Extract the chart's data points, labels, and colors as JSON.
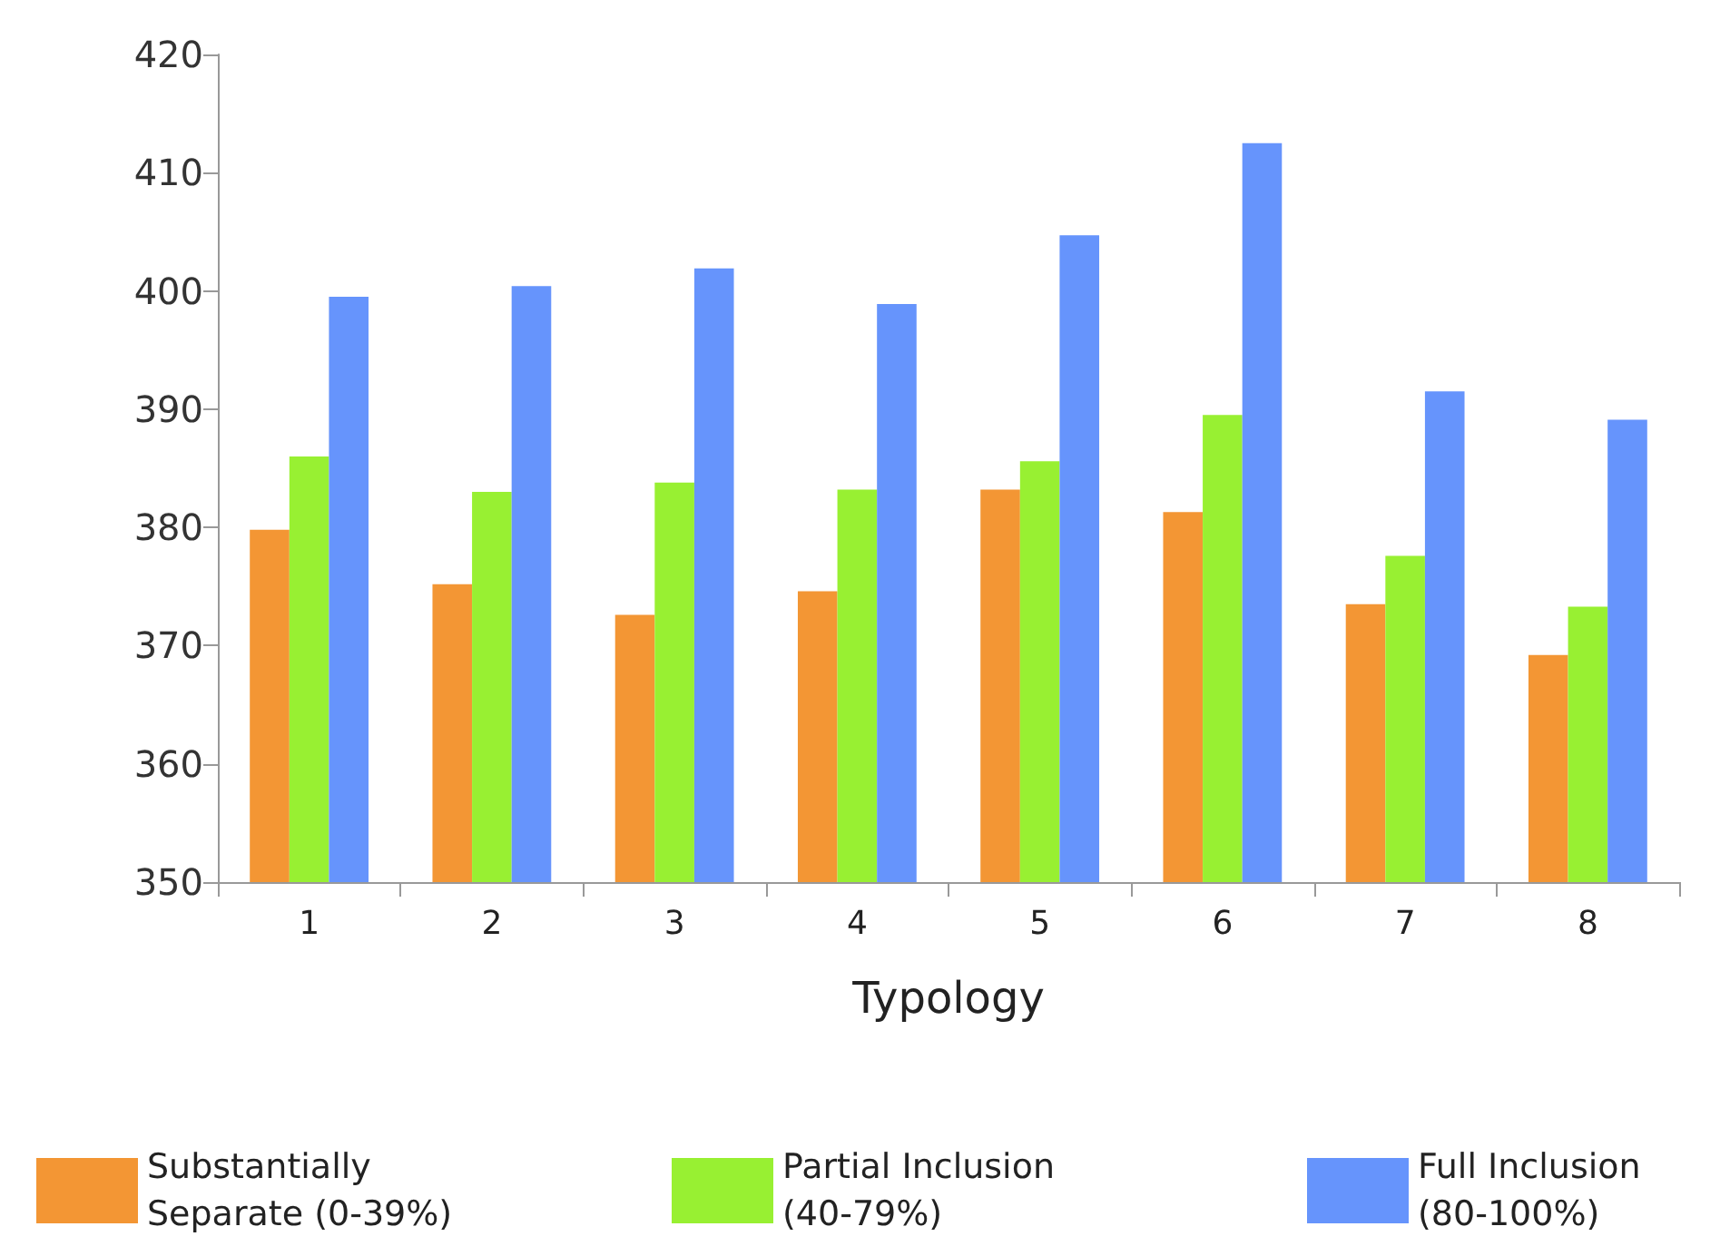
{
  "chart_data": {
    "type": "bar",
    "xlabel": "Typology",
    "categories": [
      "1",
      "2",
      "3",
      "4",
      "5",
      "6",
      "7",
      "8"
    ],
    "series": [
      {
        "name": "Substantially Separate (0-39%)",
        "color": "#f39634",
        "values": [
          379.8,
          375.2,
          372.6,
          374.6,
          383.2,
          381.3,
          373.5,
          369.2
        ]
      },
      {
        "name": "Partial Inclusion (40-79%)",
        "color": "#98f032",
        "values": [
          386.0,
          383.0,
          383.8,
          383.2,
          385.6,
          389.5,
          377.6,
          373.3
        ]
      },
      {
        "name": "Full Inclusion (80-100%)",
        "color": "#6694fc",
        "values": [
          399.5,
          400.4,
          401.9,
          398.9,
          404.7,
          412.5,
          391.5,
          389.1
        ]
      }
    ],
    "ylim": [
      350,
      420
    ],
    "yticks": [
      350,
      360,
      370,
      380,
      390,
      400,
      410,
      420
    ],
    "grid": false,
    "legend": "bottom"
  }
}
